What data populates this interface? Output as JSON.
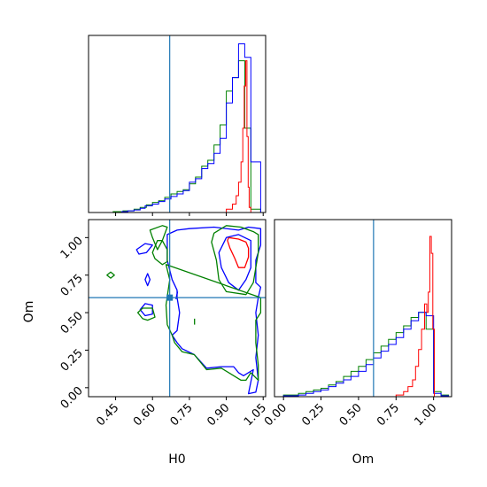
{
  "colors": {
    "red": "#ff0000",
    "blue": "#0000ff",
    "green": "#008000",
    "truth": "#1f77b4"
  },
  "chart_data": {
    "type": "corner",
    "parameters": [
      "H0",
      "Om"
    ],
    "truth": {
      "H0": 0.67,
      "Om": 0.6
    },
    "series": [
      {
        "color": "red"
      },
      {
        "color": "blue"
      },
      {
        "color": "green"
      }
    ],
    "panels": [
      {
        "id": "hist-H0",
        "type": "histogram",
        "parameter": "H0",
        "xlim": [
          0.34,
          1.06
        ],
        "series": {
          "red": {
            "edges": [
              0.9,
              0.925,
              0.94,
              0.95,
              0.96,
              0.967,
              0.973,
              0.979,
              0.984,
              0.989,
              0.993,
              1.0
            ],
            "heights": [
              0.02,
              0.05,
              0.1,
              0.18,
              0.3,
              0.5,
              0.75,
              0.9,
              0.45,
              0.15,
              0.03
            ]
          },
          "blue": {
            "edges": [
              0.34,
              0.475,
              0.5,
              0.525,
              0.55,
              0.57,
              0.6,
              0.625,
              0.65,
              0.675,
              0.7,
              0.725,
              0.75,
              0.775,
              0.8,
              0.825,
              0.85,
              0.875,
              0.9,
              0.925,
              0.95,
              0.975,
              1.0,
              1.02,
              1.04
            ],
            "heights": [
              0,
              0.005,
              0.01,
              0.015,
              0.025,
              0.04,
              0.05,
              0.065,
              0.08,
              0.095,
              0.11,
              0.13,
              0.18,
              0.2,
              0.26,
              0.29,
              0.35,
              0.44,
              0.65,
              0.8,
              1.0,
              0.92,
              0.3,
              0.3
            ]
          },
          "green": {
            "edges": [
              0.34,
              0.44,
              0.48,
              0.525,
              0.55,
              0.575,
              0.6,
              0.625,
              0.65,
              0.675,
              0.7,
              0.725,
              0.75,
              0.775,
              0.8,
              0.825,
              0.85,
              0.875,
              0.9,
              0.925,
              0.95,
              0.975,
              1.0,
              1.04
            ],
            "heights": [
              0,
              0.005,
              0.01,
              0.02,
              0.03,
              0.045,
              0.06,
              0.07,
              0.09,
              0.11,
              0.125,
              0.135,
              0.17,
              0.21,
              0.275,
              0.31,
              0.4,
              0.52,
              0.72,
              0.8,
              0.9,
              0.5,
              0.02
            ]
          }
        }
      },
      {
        "id": "contour-H0-Om",
        "type": "contour",
        "x": "H0",
        "y": "Om",
        "xlim": [
          0.34,
          1.06
        ],
        "ylim": [
          -0.06,
          1.12
        ],
        "xlabel": "H0",
        "ylabel": "Om",
        "xticks": [
          "0.45",
          "0.60",
          "0.75",
          "0.90",
          "1.05"
        ],
        "yticks": [
          "0.00",
          "0.25",
          "0.50",
          "0.75",
          "1.00"
        ],
        "contours": [
          {
            "color": "red",
            "points": [
              [
                0.91,
                1.0
              ],
              [
                0.95,
                0.99
              ],
              [
                0.98,
                0.97
              ],
              [
                0.99,
                0.93
              ],
              [
                0.99,
                0.87
              ],
              [
                0.975,
                0.8
              ],
              [
                0.95,
                0.8
              ],
              [
                0.935,
                0.86
              ],
              [
                0.915,
                0.93
              ],
              [
                0.905,
                0.98
              ]
            ]
          },
          {
            "color": "blue",
            "points": [
              [
                0.66,
                1.02
              ],
              [
                0.7,
                1.05
              ],
              [
                0.75,
                1.06
              ],
              [
                0.85,
                1.07
              ],
              [
                0.95,
                1.05
              ],
              [
                0.99,
                1.07
              ],
              [
                1.04,
                1.06
              ],
              [
                1.04,
                0.95
              ],
              [
                1.02,
                0.85
              ],
              [
                1.02,
                0.7
              ],
              [
                1.04,
                0.67
              ],
              [
                1.03,
                0.6
              ],
              [
                1.02,
                0.5
              ],
              [
                1.03,
                0.35
              ],
              [
                1.02,
                0.2
              ],
              [
                1.03,
                0.05
              ],
              [
                1.02,
                -0.03
              ],
              [
                0.99,
                -0.04
              ],
              [
                1.01,
                0.12
              ],
              [
                0.97,
                0.08
              ],
              [
                0.95,
                0.1
              ],
              [
                0.93,
                0.14
              ],
              [
                0.88,
                0.14
              ],
              [
                0.82,
                0.13
              ],
              [
                0.77,
                0.22
              ],
              [
                0.72,
                0.26
              ],
              [
                0.7,
                0.3
              ],
              [
                0.68,
                0.35
              ],
              [
                0.7,
                0.38
              ],
              [
                0.71,
                0.5
              ],
              [
                0.7,
                0.6
              ],
              [
                0.7,
                0.65
              ],
              [
                0.68,
                0.72
              ],
              [
                0.66,
                0.85
              ],
              [
                0.66,
                0.95
              ]
            ]
          },
          {
            "color": "blue",
            "points": [
              [
                0.9,
                1.0
              ],
              [
                0.95,
                1.02
              ],
              [
                1.0,
                0.98
              ],
              [
                1.0,
                0.8
              ],
              [
                0.98,
                0.72
              ],
              [
                0.95,
                0.65
              ],
              [
                0.91,
                0.7
              ],
              [
                0.88,
                0.8
              ],
              [
                0.87,
                0.9
              ]
            ]
          },
          {
            "color": "blue",
            "points": [
              [
                0.535,
                0.92
              ],
              [
                0.57,
                0.96
              ],
              [
                0.6,
                0.95
              ],
              [
                0.575,
                0.9
              ],
              [
                0.545,
                0.89
              ]
            ]
          },
          {
            "color": "blue",
            "points": [
              [
                0.57,
                0.72
              ],
              [
                0.58,
                0.68
              ],
              [
                0.59,
                0.72
              ],
              [
                0.58,
                0.76
              ]
            ]
          },
          {
            "color": "blue",
            "points": [
              [
                0.55,
                0.52
              ],
              [
                0.57,
                0.56
              ],
              [
                0.6,
                0.55
              ],
              [
                0.6,
                0.49
              ],
              [
                0.57,
                0.48
              ]
            ]
          },
          {
            "color": "green",
            "points": [
              [
                0.64,
                1.08
              ],
              [
                0.66,
                1.07
              ],
              [
                0.64,
                0.98
              ],
              [
                0.62,
                0.92
              ],
              [
                0.6,
                1.0
              ],
              [
                0.59,
                1.05
              ]
            ]
          },
          {
            "color": "green",
            "points": [
              [
                0.85,
                1.03
              ],
              [
                0.9,
                1.08
              ],
              [
                0.96,
                1.07
              ],
              [
                1.01,
                1.04
              ],
              [
                1.03,
                1.02
              ],
              [
                1.03,
                0.9
              ],
              [
                1.01,
                0.7
              ],
              [
                0.98,
                0.62
              ],
              [
                0.9,
                0.64
              ],
              [
                0.87,
                0.72
              ],
              [
                0.86,
                0.85
              ],
              [
                0.84,
                0.97
              ]
            ]
          },
          {
            "color": "green",
            "points": [
              [
                0.61,
                0.86
              ],
              [
                0.6,
                0.9
              ],
              [
                0.62,
                0.98
              ],
              [
                0.64,
                0.98
              ],
              [
                0.66,
                0.92
              ],
              [
                0.66,
                0.84
              ],
              [
                0.64,
                0.82
              ]
            ]
          },
          {
            "color": "green",
            "points": [
              [
                0.655,
                0.82
              ],
              [
                0.67,
                0.72
              ],
              [
                0.655,
                0.55
              ],
              [
                0.66,
                0.42
              ],
              [
                0.68,
                0.35
              ],
              [
                0.69,
                0.3
              ],
              [
                0.72,
                0.24
              ],
              [
                0.77,
                0.22
              ],
              [
                0.82,
                0.12
              ],
              [
                0.88,
                0.13
              ],
              [
                0.93,
                0.08
              ],
              [
                0.96,
                0.05
              ],
              [
                0.98,
                0.05
              ],
              [
                1.0,
                0.1
              ],
              [
                1.03,
                0.05
              ],
              [
                1.03,
                0.15
              ],
              [
                1.02,
                0.3
              ],
              [
                1.02,
                0.45
              ],
              [
                1.04,
                0.5
              ],
              [
                1.04,
                0.6
              ]
            ]
          },
          {
            "color": "green",
            "points": [
              [
                0.54,
                0.5
              ],
              [
                0.56,
                0.53
              ],
              [
                0.6,
                0.53
              ],
              [
                0.61,
                0.47
              ],
              [
                0.58,
                0.45
              ],
              [
                0.56,
                0.46
              ]
            ]
          },
          {
            "color": "green",
            "points": [
              [
                0.415,
                0.75
              ],
              [
                0.43,
                0.77
              ],
              [
                0.445,
                0.75
              ],
              [
                0.43,
                0.73
              ]
            ]
          },
          {
            "color": "green",
            "points": [
              [
                0.771,
                0.42
              ],
              [
                0.771,
                0.46
              ]
            ]
          },
          {
            "color": "blue",
            "points": [
              [
                0.695,
                0.59
              ],
              [
                0.702,
                0.64
              ]
            ]
          }
        ]
      },
      {
        "id": "hist-Om",
        "type": "histogram",
        "parameter": "Om",
        "xlim": [
          -0.06,
          1.12
        ],
        "xlabel": "Om",
        "xticks": [
          "0.00",
          "0.25",
          "0.50",
          "0.75",
          "1.00"
        ],
        "series": {
          "red": {
            "edges": [
              0.75,
              0.8,
              0.83,
              0.86,
              0.88,
              0.9,
              0.92,
              0.94,
              0.955,
              0.965,
              0.975,
              0.985,
              0.995,
              1.005
            ],
            "heights": [
              0.01,
              0.03,
              0.06,
              0.1,
              0.18,
              0.28,
              0.4,
              0.55,
              0.5,
              0.62,
              0.95,
              0.85,
              0.4
            ]
          },
          "blue": {
            "edges": [
              0.0,
              0.1,
              0.15,
              0.2,
              0.25,
              0.3,
              0.35,
              0.4,
              0.45,
              0.5,
              0.55,
              0.6,
              0.65,
              0.7,
              0.75,
              0.8,
              0.85,
              0.9,
              0.95,
              1.0,
              1.05,
              1.1
            ],
            "heights": [
              0.005,
              0.01,
              0.02,
              0.03,
              0.04,
              0.06,
              0.08,
              0.1,
              0.12,
              0.15,
              0.19,
              0.23,
              0.27,
              0.31,
              0.35,
              0.4,
              0.45,
              0.5,
              0.48,
              0.02,
              0.005
            ]
          },
          "green": {
            "edges": [
              0.0,
              0.1,
              0.15,
              0.2,
              0.25,
              0.3,
              0.35,
              0.4,
              0.45,
              0.5,
              0.55,
              0.6,
              0.65,
              0.7,
              0.75,
              0.8,
              0.85,
              0.9,
              0.95,
              1.0,
              1.05,
              1.1
            ],
            "heights": [
              0.01,
              0.02,
              0.03,
              0.04,
              0.05,
              0.07,
              0.09,
              0.12,
              0.15,
              0.18,
              0.22,
              0.26,
              0.3,
              0.34,
              0.38,
              0.42,
              0.47,
              0.5,
              0.4,
              0.03,
              0.01
            ]
          }
        }
      }
    ]
  }
}
